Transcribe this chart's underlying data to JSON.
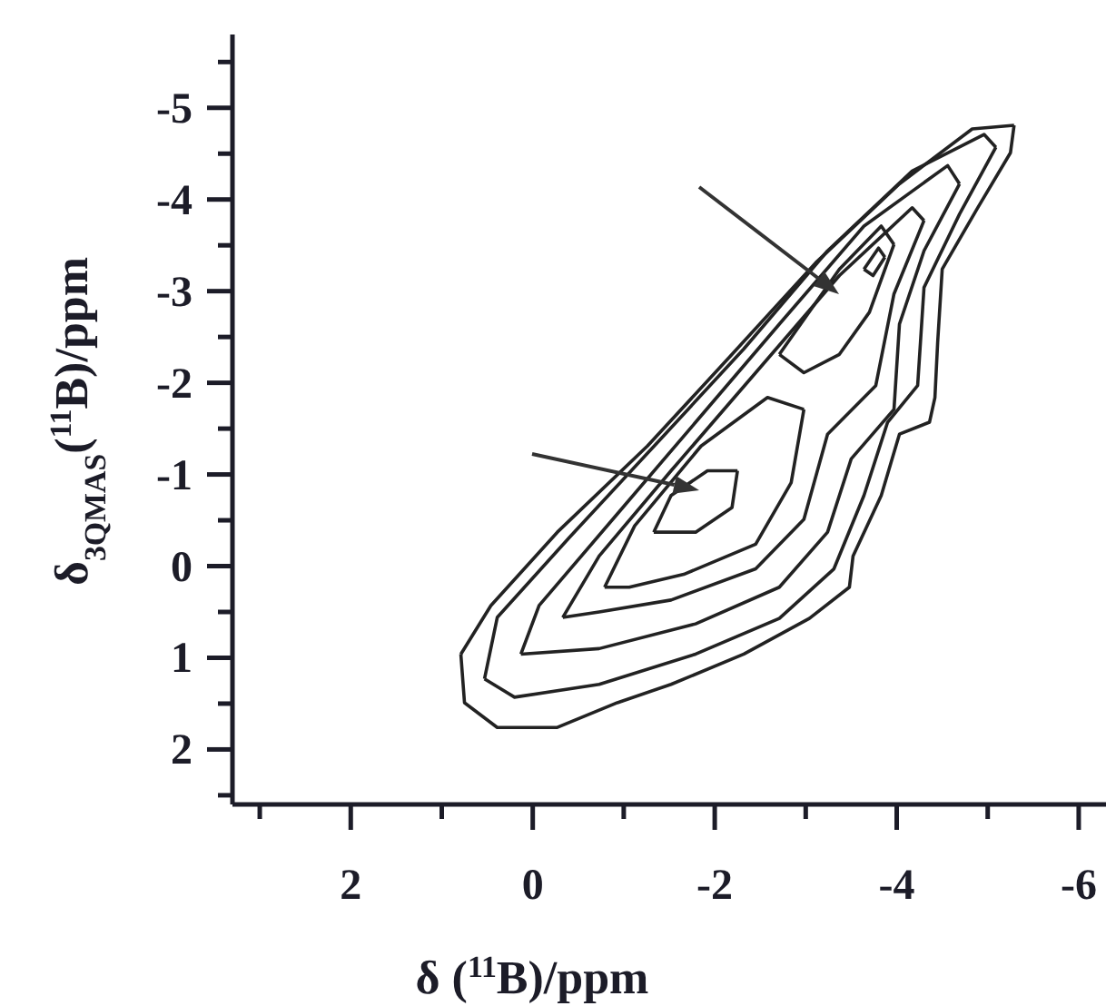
{
  "chart_data": {
    "type": "line",
    "xlabel": "δ ($^{11}$B)/ppm",
    "ylabel": "δ$_{3QMAS}$($^{11}$B)/ppm",
    "xlim": [
      3.3,
      -6.3
    ],
    "ylim": [
      2.6,
      -5.8
    ],
    "xticks": [
      {
        "value": 3,
        "label": null
      },
      2,
      {
        "value": 1,
        "label": null
      },
      0,
      {
        "value": -1,
        "label": null
      },
      -2,
      {
        "value": -3,
        "label": null
      },
      -4,
      {
        "value": -5,
        "label": null
      },
      -6
    ],
    "yticks": [
      {
        "value": 2.5,
        "label": null
      },
      2,
      {
        "value": 1.5,
        "label": null
      },
      1,
      {
        "value": 0.5,
        "label": null
      },
      0,
      {
        "value": -0.5,
        "label": null
      },
      -1,
      {
        "value": -1.5,
        "label": null
      },
      -2,
      {
        "value": -2.5,
        "label": null
      },
      -3,
      {
        "value": -3.5,
        "label": null
      },
      -4,
      {
        "value": -4.5,
        "label": null
      },
      -5,
      {
        "value": -5.5,
        "label": null
      }
    ],
    "grid": false,
    "marker": "none",
    "line_style": "solid",
    "series": [
      {
        "color": "#222222",
        "x": [
          0.79,
          0.46,
          -0.27,
          -1.26,
          -2.19,
          -3.11,
          -4.03,
          -4.83,
          -5.29
        ],
        "values": [
          0.96,
          0.43,
          -0.37,
          -1.31,
          -2.31,
          -3.31,
          -4.17,
          -4.77,
          -4.81
        ]
      },
      {
        "color": "#222222",
        "x": [
          -5.29,
          -5.25,
          -4.89,
          -4.5,
          -4.45,
          -4.42,
          -4.36,
          -4.03,
          -3.83,
          -3.52,
          -3.48,
          -3.04,
          -2.32,
          -1.52,
          -0.93,
          -0.27,
          0.39,
          0.75,
          0.79
        ],
        "values": [
          -4.81,
          -4.51,
          -3.91,
          -3.24,
          -2.44,
          -1.84,
          -1.57,
          -1.44,
          -0.77,
          -0.11,
          0.23,
          0.57,
          0.96,
          1.29,
          1.49,
          1.76,
          1.76,
          1.49,
          0.96
        ]
      },
      {
        "color": "#222222",
        "x": [
          0.53,
          0.39,
          -0.4,
          -1.39,
          -2.32,
          -3.24,
          -4.17,
          -4.96,
          -5.09
        ],
        "values": [
          1.23,
          0.56,
          -0.31,
          -1.37,
          -2.37,
          -3.44,
          -4.31,
          -4.71,
          -4.57
        ]
      },
      {
        "color": "#222222",
        "x": [
          -5.09,
          -4.69,
          -4.3,
          -4.23,
          -3.9,
          -3.64,
          -3.31,
          -2.71,
          -1.79,
          -0.73,
          0.2,
          0.53
        ],
        "values": [
          -4.57,
          -3.84,
          -3.04,
          -1.97,
          -1.57,
          -0.77,
          0.03,
          0.57,
          0.96,
          1.29,
          1.43,
          1.23
        ]
      },
      {
        "color": "#222222",
        "x": [
          0.13,
          -0.07,
          -0.93,
          -1.79,
          -2.71,
          -3.64,
          -4.56,
          -4.69
        ],
        "values": [
          0.96,
          0.43,
          -0.57,
          -1.57,
          -2.64,
          -3.71,
          -4.37,
          -4.17
        ]
      },
      {
        "color": "#222222",
        "x": [
          -4.69,
          -4.3,
          -4.03,
          -3.97,
          -3.5,
          -3.24,
          -2.71,
          -1.79,
          -0.73,
          0.13
        ],
        "values": [
          -4.17,
          -3.44,
          -2.64,
          -1.71,
          -1.17,
          -0.37,
          0.23,
          0.63,
          0.9,
          0.96
        ]
      },
      {
        "color": "#222222",
        "x": [
          -0.33,
          -0.73,
          -1.52,
          -2.45,
          -3.37,
          -4.17,
          -4.3
        ],
        "values": [
          0.56,
          -0.11,
          -1.04,
          -2.11,
          -3.17,
          -3.91,
          -3.77
        ]
      },
      {
        "color": "#222222",
        "x": [
          -4.3,
          -3.97,
          -3.77,
          -3.24,
          -2.98,
          -2.45,
          -1.52,
          -0.73,
          -0.33
        ],
        "values": [
          -3.77,
          -2.97,
          -1.97,
          -1.44,
          -0.51,
          0.03,
          0.37,
          0.5,
          0.56
        ]
      },
      {
        "color": "#222222",
        "x": [
          -0.79,
          -1.12,
          -1.85,
          -2.58,
          -2.98
        ],
        "values": [
          0.23,
          -0.44,
          -1.31,
          -1.84,
          -1.71
        ]
      },
      {
        "color": "#222222",
        "x": [
          -2.98,
          -2.84,
          -2.45,
          -1.66,
          -1.06,
          -0.79
        ],
        "values": [
          -1.71,
          -0.91,
          -0.24,
          0.09,
          0.23,
          0.23
        ]
      },
      {
        "color": "#222222",
        "x": [
          -1.33,
          -1.52,
          -1.92,
          -2.25
        ],
        "values": [
          -0.37,
          -0.77,
          -1.04,
          -1.04
        ]
      },
      {
        "color": "#222222",
        "x": [
          -2.25,
          -2.19,
          -1.79,
          -1.33
        ],
        "values": [
          -1.04,
          -0.64,
          -0.37,
          -0.37
        ]
      },
      {
        "color": "#222222",
        "x": [
          -2.71,
          -3.37,
          -3.83,
          -3.97
        ],
        "values": [
          -2.31,
          -3.24,
          -3.71,
          -3.51
        ]
      },
      {
        "color": "#222222",
        "x": [
          -3.97,
          -3.7,
          -3.37,
          -2.98,
          -2.71
        ],
        "values": [
          -3.51,
          -2.77,
          -2.31,
          -2.11,
          -2.31
        ]
      },
      {
        "color": "#222222",
        "x": [
          -3.64,
          -3.8,
          -3.87
        ],
        "values": [
          -3.24,
          -3.47,
          -3.37
        ]
      },
      {
        "color": "#222222",
        "x": [
          -3.87,
          -3.74,
          -3.64
        ],
        "values": [
          -3.37,
          -3.17,
          -3.24
        ]
      }
    ]
  }
}
